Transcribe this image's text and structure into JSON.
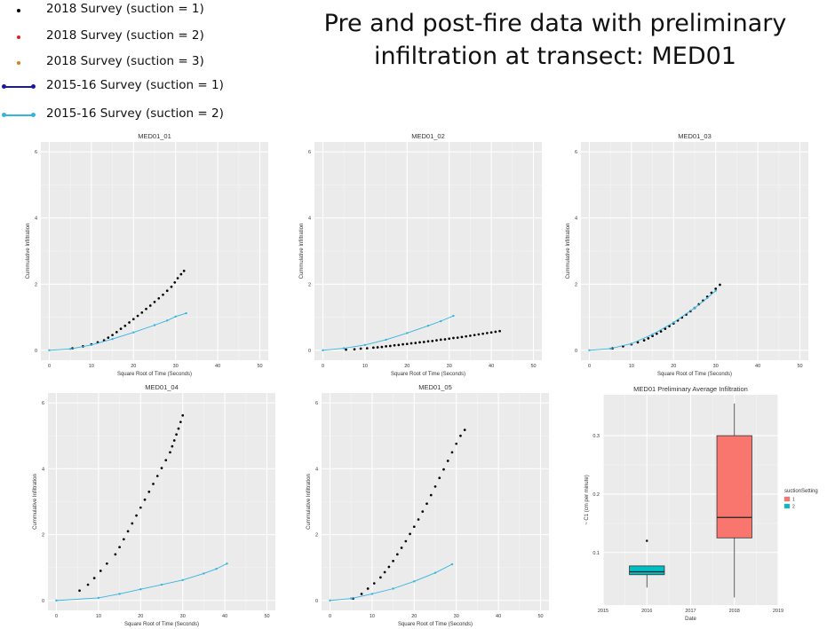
{
  "title_line1": "Pre and post-fire data with preliminary",
  "title_line2": "infiltration at transect: MED01",
  "legend": {
    "items": [
      {
        "label": "2018 Survey (suction = 1)",
        "color": "#000000",
        "kind": "dot"
      },
      {
        "label": "2018 Survey (suction = 2)",
        "color": "#e02020",
        "kind": "dot"
      },
      {
        "label": "2018 Survey (suction = 3)",
        "color": "#e07a1a",
        "kind": "dot"
      },
      {
        "label": "2015-16 Survey (suction = 1)",
        "color": "#1a1aa0",
        "kind": "line"
      },
      {
        "label": "2015-16 Survey (suction = 2)",
        "color": "#33b4e0",
        "kind": "line"
      }
    ]
  },
  "chart_data": [
    {
      "type": "scatter",
      "title": "MED01_01",
      "xlabel": "Square Root of Time (Seconds)",
      "ylabel": "Cummulative Infiltration",
      "xlim": [
        -2,
        52
      ],
      "ylim": [
        -0.3,
        6.3
      ],
      "xticks": [
        0,
        10,
        20,
        30,
        40,
        50
      ],
      "yticks": [
        0,
        2,
        4,
        6
      ],
      "grid": true,
      "series": [
        {
          "survey": "2018",
          "color": "#000000",
          "style": "points",
          "x": [
            5.5,
            8,
            10,
            11.5,
            13,
            14,
            15,
            16,
            17,
            18,
            19,
            20,
            21,
            22,
            23,
            24,
            25,
            26,
            27,
            28,
            29,
            29.8,
            30.5,
            31.3,
            32
          ],
          "y": [
            0.06,
            0.12,
            0.18,
            0.24,
            0.3,
            0.38,
            0.46,
            0.55,
            0.65,
            0.74,
            0.84,
            0.94,
            1.04,
            1.14,
            1.25,
            1.35,
            1.46,
            1.57,
            1.68,
            1.8,
            1.92,
            2.05,
            2.18,
            2.3,
            2.4
          ]
        },
        {
          "survey": "2015-16",
          "color": "#33b4e0",
          "style": "line-points",
          "x": [
            0,
            5,
            10,
            15,
            20,
            25,
            28,
            30,
            32.5
          ],
          "y": [
            0,
            0.04,
            0.16,
            0.34,
            0.54,
            0.76,
            0.9,
            1.02,
            1.12
          ]
        }
      ]
    },
    {
      "type": "scatter",
      "title": "MED01_02",
      "xlabel": "Square Root of Time (Seconds)",
      "ylabel": "Cummulative Infiltration",
      "xlim": [
        -2,
        52
      ],
      "ylim": [
        -0.3,
        6.3
      ],
      "xticks": [
        0,
        10,
        20,
        30,
        40,
        50
      ],
      "yticks": [
        0,
        2,
        4,
        6
      ],
      "grid": true,
      "series": [
        {
          "survey": "2018",
          "color": "#000000",
          "style": "points",
          "x": [
            5.5,
            7.5,
            9,
            10.5,
            12,
            13,
            14,
            15,
            16,
            17,
            18,
            19,
            20,
            21,
            22,
            23,
            24,
            25,
            26,
            27,
            28,
            29,
            30,
            31,
            32,
            33,
            34,
            35,
            36,
            37,
            38,
            39,
            40,
            41,
            42
          ],
          "y": [
            0.02,
            0.03,
            0.05,
            0.06,
            0.08,
            0.09,
            0.1,
            0.12,
            0.13,
            0.15,
            0.16,
            0.18,
            0.19,
            0.21,
            0.22,
            0.24,
            0.25,
            0.27,
            0.28,
            0.3,
            0.32,
            0.33,
            0.35,
            0.37,
            0.38,
            0.4,
            0.42,
            0.44,
            0.46,
            0.48,
            0.5,
            0.52,
            0.54,
            0.56,
            0.58
          ]
        },
        {
          "survey": "2015-16",
          "color": "#33b4e0",
          "style": "line-points",
          "x": [
            0,
            5,
            10,
            15,
            20,
            25,
            28,
            31
          ],
          "y": [
            0,
            0.06,
            0.16,
            0.32,
            0.52,
            0.74,
            0.88,
            1.04
          ]
        }
      ]
    },
    {
      "type": "scatter",
      "title": "MED01_03",
      "xlabel": "Square Root of Time (Seconds)",
      "ylabel": "Cummulative Infiltration",
      "xlim": [
        -2,
        52
      ],
      "ylim": [
        -0.3,
        6.3
      ],
      "xticks": [
        0,
        10,
        20,
        30,
        40,
        50
      ],
      "yticks": [
        0,
        2,
        4,
        6
      ],
      "grid": true,
      "series": [
        {
          "survey": "2018",
          "color": "#000000",
          "style": "points",
          "x": [
            5.5,
            8,
            10,
            11.5,
            13,
            14,
            15,
            16,
            17,
            18,
            19,
            20,
            21,
            22,
            23,
            24,
            25,
            26,
            27,
            28,
            29,
            30,
            31
          ],
          "y": [
            0.06,
            0.12,
            0.18,
            0.24,
            0.3,
            0.36,
            0.43,
            0.5,
            0.57,
            0.65,
            0.73,
            0.81,
            0.9,
            0.99,
            1.08,
            1.18,
            1.28,
            1.39,
            1.5,
            1.62,
            1.74,
            1.86,
            1.98
          ]
        },
        {
          "survey": "2015-16",
          "color": "#33b4e0",
          "style": "line-points",
          "x": [
            0,
            5,
            10,
            15,
            20,
            25,
            28,
            30
          ],
          "y": [
            0,
            0.05,
            0.2,
            0.48,
            0.84,
            1.28,
            1.58,
            1.8
          ]
        }
      ]
    },
    {
      "type": "scatter",
      "title": "MED01_04",
      "xlabel": "Square Root of Time (Seconds)",
      "ylabel": "Cummulative Infiltration",
      "xlim": [
        -2,
        52
      ],
      "ylim": [
        -0.3,
        6.3
      ],
      "xticks": [
        0,
        10,
        20,
        30,
        40,
        50
      ],
      "yticks": [
        0,
        2,
        4,
        6
      ],
      "grid": true,
      "series": [
        {
          "survey": "2018",
          "color": "#000000",
          "style": "points",
          "x": [
            5.5,
            7.5,
            9,
            10.5,
            12,
            14,
            15,
            16,
            17,
            18,
            19,
            20,
            21,
            22,
            23,
            24,
            25,
            26,
            27,
            27.5,
            28,
            28.5,
            29,
            29.5,
            30
          ],
          "y": [
            0.3,
            0.48,
            0.68,
            0.9,
            1.12,
            1.4,
            1.62,
            1.86,
            2.1,
            2.34,
            2.58,
            2.82,
            3.06,
            3.3,
            3.54,
            3.78,
            4.02,
            4.26,
            4.5,
            4.68,
            4.86,
            5.04,
            5.22,
            5.42,
            5.62
          ]
        },
        {
          "survey": "2015-16",
          "color": "#33b4e0",
          "style": "line-points",
          "x": [
            0,
            10,
            15,
            20,
            25,
            30,
            35,
            38,
            40.5
          ],
          "y": [
            0,
            0.08,
            0.2,
            0.34,
            0.48,
            0.62,
            0.82,
            0.96,
            1.12
          ]
        }
      ]
    },
    {
      "type": "scatter",
      "title": "MED01_05",
      "xlabel": "Square Root of Time (Seconds)",
      "ylabel": "Cummulative Infiltration",
      "xlim": [
        -2,
        52
      ],
      "ylim": [
        -0.3,
        6.3
      ],
      "xticks": [
        0,
        10,
        20,
        30,
        40,
        50
      ],
      "yticks": [
        0,
        2,
        4,
        6
      ],
      "grid": true,
      "series": [
        {
          "survey": "2018",
          "color": "#000000",
          "style": "points",
          "x": [
            5.5,
            7.5,
            9,
            10.5,
            12,
            13,
            14,
            15,
            16,
            17,
            18,
            19,
            20,
            21,
            22,
            23,
            24,
            25,
            26,
            27,
            28,
            29,
            30,
            31,
            32
          ],
          "y": [
            0.06,
            0.2,
            0.36,
            0.52,
            0.7,
            0.86,
            1.02,
            1.2,
            1.4,
            1.6,
            1.8,
            2.02,
            2.24,
            2.46,
            2.7,
            2.94,
            3.2,
            3.46,
            3.72,
            3.98,
            4.24,
            4.5,
            4.76,
            5.0,
            5.18
          ]
        },
        {
          "survey": "2015-16",
          "color": "#33b4e0",
          "style": "line-points",
          "x": [
            0,
            5,
            10,
            15,
            20,
            25,
            29
          ],
          "y": [
            0,
            0.06,
            0.2,
            0.36,
            0.58,
            0.84,
            1.1
          ]
        }
      ]
    },
    {
      "type": "boxplot",
      "title": "MED01 Preliminary Average Infiltration",
      "xlabel": "Date",
      "ylabel": "~ C1 (cm per minute)",
      "xlim": [
        2015,
        2019
      ],
      "ylim": [
        0.01,
        0.37
      ],
      "xticks": [
        2015,
        2016,
        2017,
        2018,
        2019
      ],
      "yticks": [
        0.1,
        0.2,
        0.3
      ],
      "grid": true,
      "legend_title": "suctionSetting",
      "legend_entries": [
        {
          "label": "1",
          "color": "#f8766d"
        },
        {
          "label": "2",
          "color": "#00bfc4"
        }
      ],
      "boxes": [
        {
          "suction": "2",
          "x_center": 2016,
          "x_halfwidth": 0.4,
          "min": 0.04,
          "q1": 0.062,
          "median": 0.067,
          "q3": 0.077,
          "max": 0.077,
          "outliers": [
            0.12
          ],
          "color": "#00bfc4"
        },
        {
          "suction": "1",
          "x_center": 2018,
          "x_halfwidth": 0.4,
          "min": 0.023,
          "q1": 0.125,
          "median": 0.16,
          "q3": 0.3,
          "max": 0.355,
          "outliers": [],
          "color": "#f8766d"
        }
      ]
    }
  ]
}
